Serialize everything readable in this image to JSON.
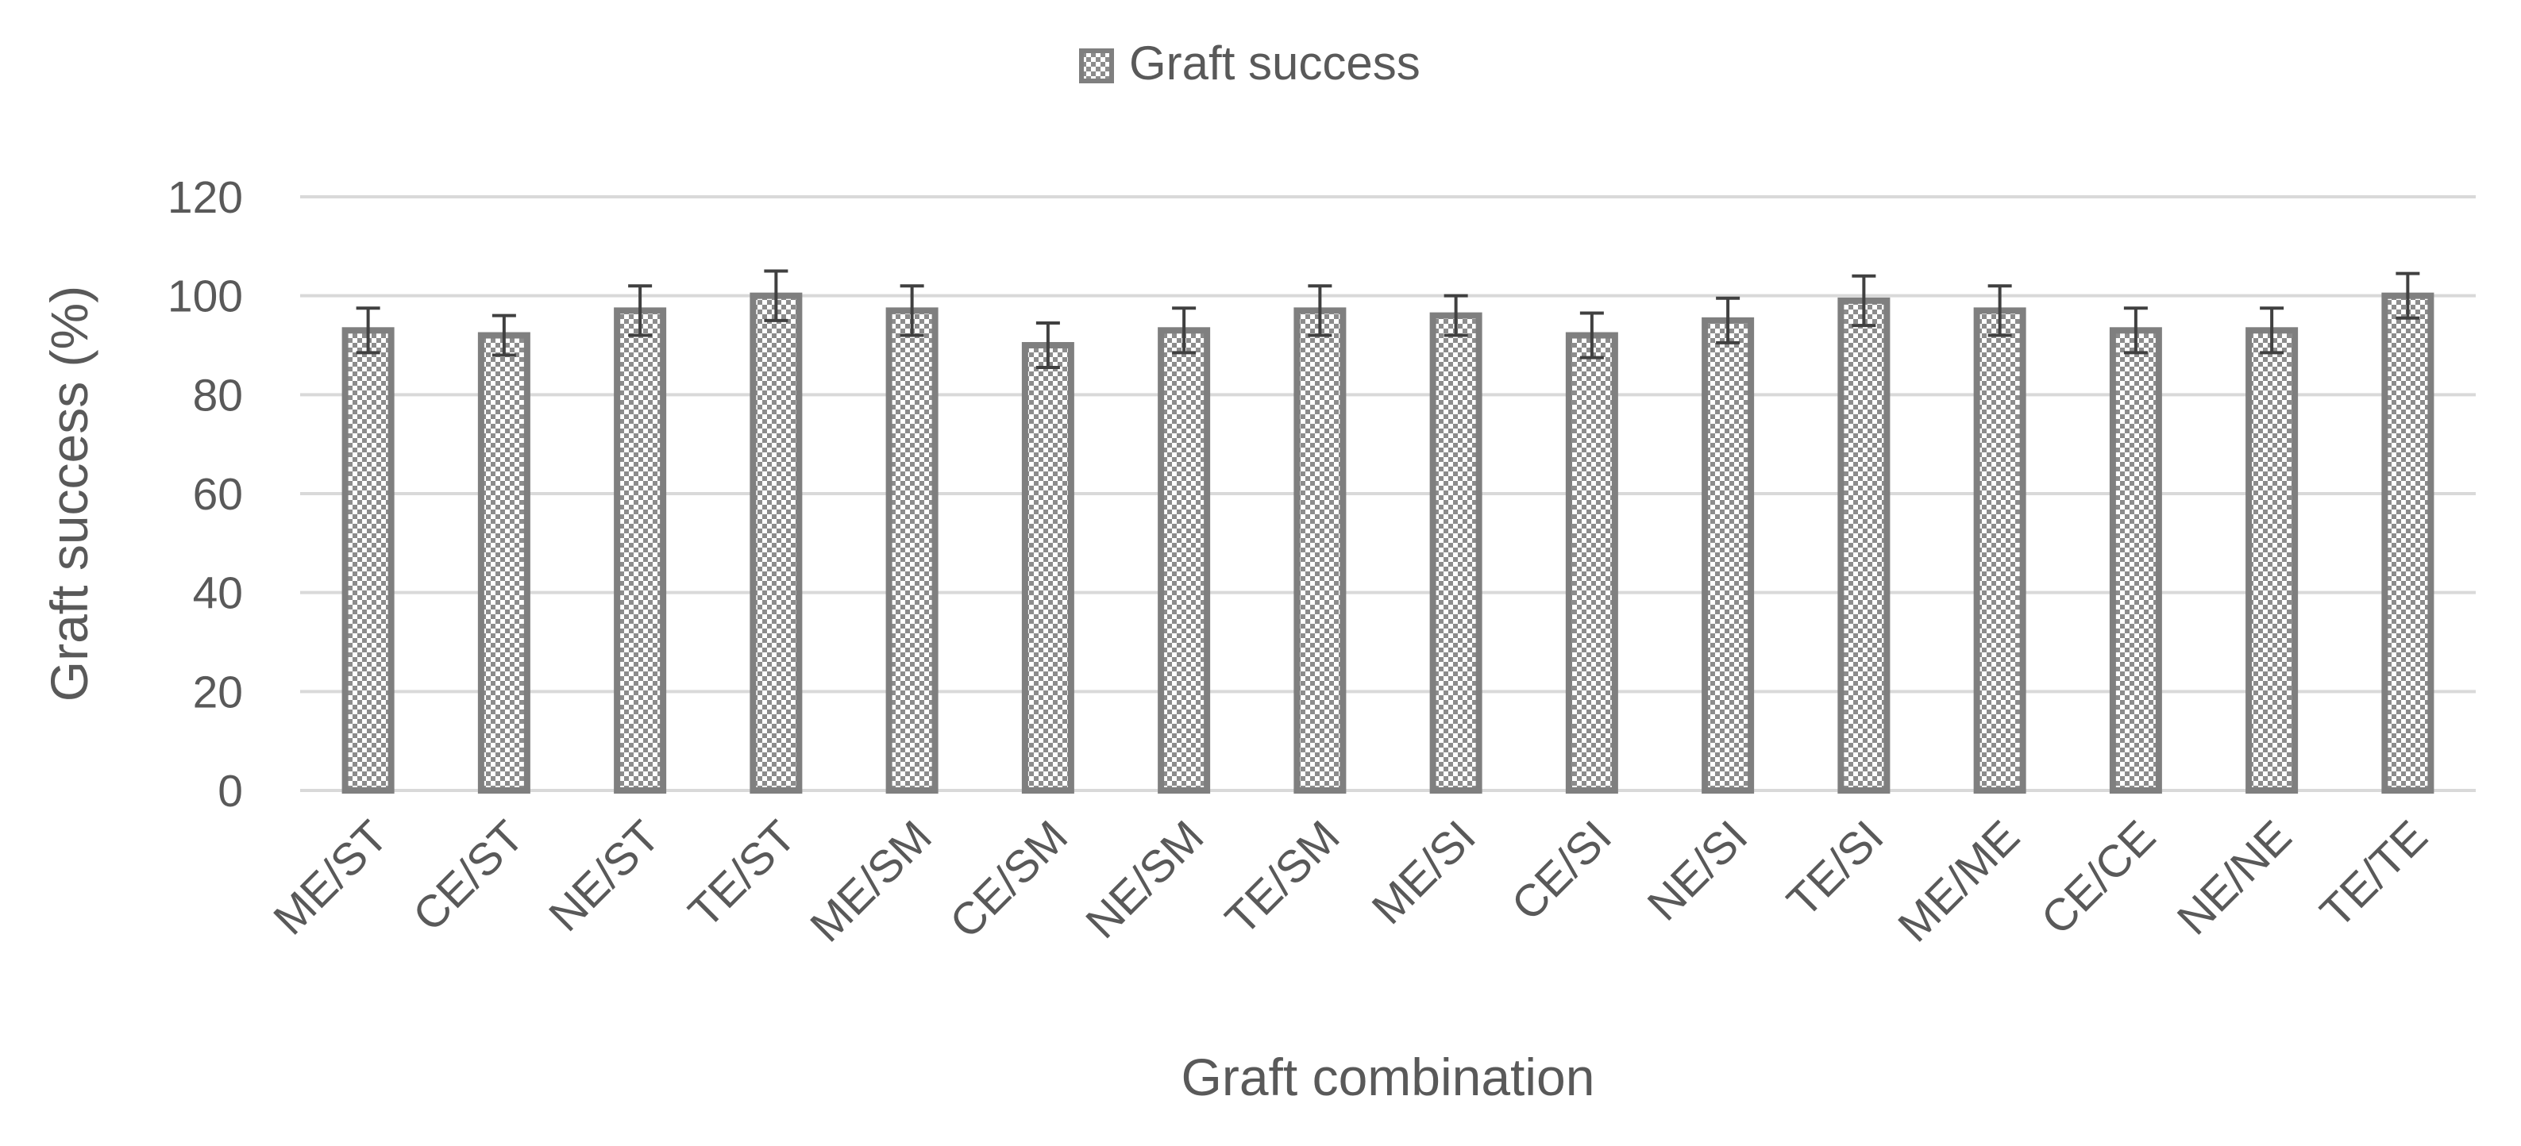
{
  "chart_data": {
    "type": "bar",
    "title": "",
    "xlabel": "Graft combination",
    "ylabel": "Graft success (%)",
    "ylim": [
      0,
      120
    ],
    "yticks": [
      0,
      20,
      40,
      60,
      80,
      100,
      120
    ],
    "grid": true,
    "legend": {
      "position": "top-center"
    },
    "categories": [
      "ME/ST",
      "CE/ST",
      "NE/ST",
      "TE/ST",
      "ME/SM",
      "CE/SM",
      "NE/SM",
      "TE/SM",
      "ME/SI",
      "CE/SI",
      "NE/SI",
      "TE/SI",
      "ME/ME",
      "CE/CE",
      "NE/NE",
      "TE/TE"
    ],
    "series": [
      {
        "name": "Graft success",
        "values": [
          93,
          92,
          97,
          100,
          97,
          90,
          93,
          97,
          96,
          92,
          95,
          99,
          97,
          93,
          93,
          100
        ],
        "error": [
          4.5,
          4,
          5,
          5,
          5,
          4.5,
          4.5,
          5,
          4,
          4.5,
          4.5,
          5,
          5,
          4.5,
          4.5,
          4.5
        ]
      }
    ],
    "colors": {
      "bar_border": "#7f7f7f",
      "bar_fill": "#ffffff",
      "pattern": "#8c8c8c",
      "grid": "#d9d9d9",
      "error_bar": "#404040",
      "text": "#595959"
    }
  }
}
